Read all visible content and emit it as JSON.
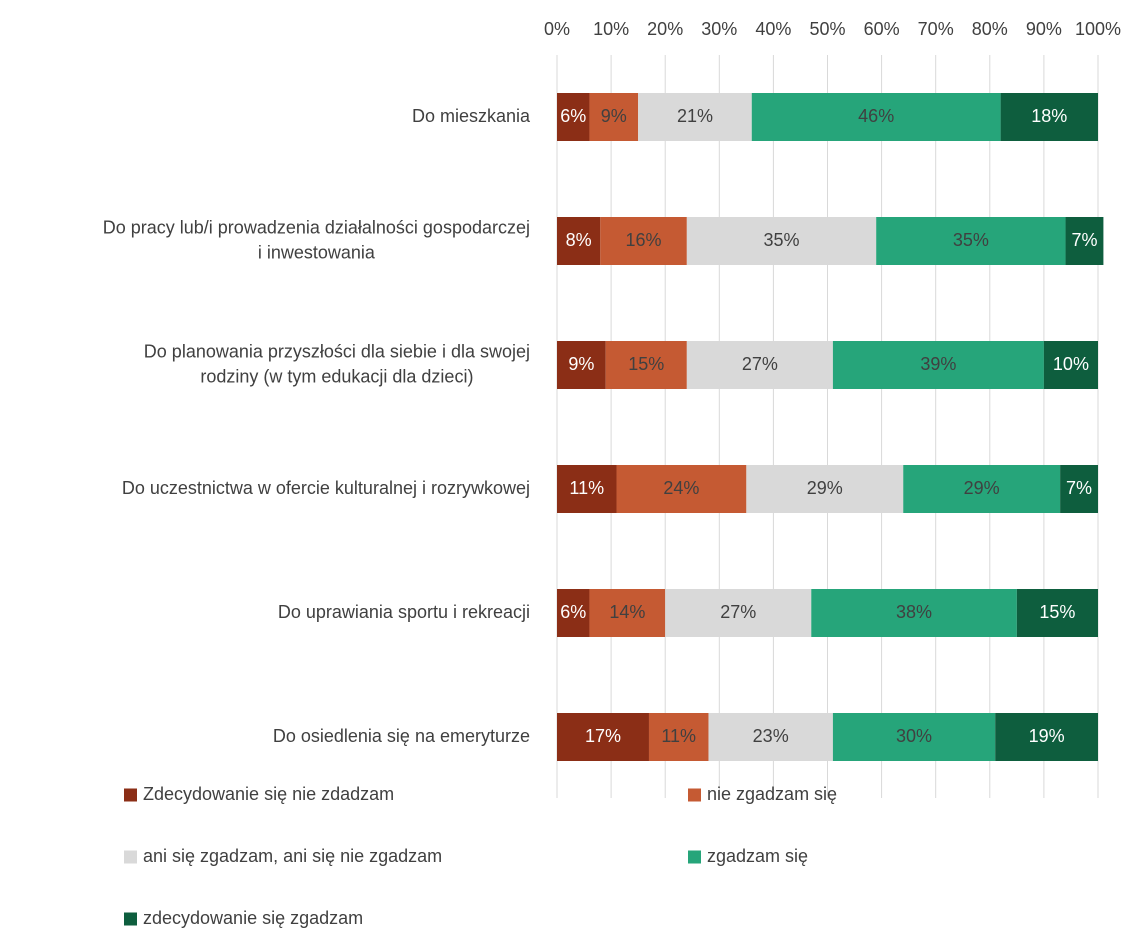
{
  "chart_data": {
    "type": "stacked-barh",
    "categories": [
      [
        "Do mieszkania"
      ],
      [
        "Do pracy lub/i prowadzenia działalności gospodarczej",
        "i inwestowania"
      ],
      [
        "Do planowania przyszłości dla siebie i dla swojej",
        "rodziny (w tym edukacji dla dzieci)"
      ],
      [
        "Do uczestnictwa w ofercie kulturalnej i rozrywkowej"
      ],
      [
        "Do uprawiania sportu i rekreacji"
      ],
      [
        "Do osiedlenia się na emeryturze"
      ]
    ],
    "series": [
      {
        "name": "Zdecydowanie się nie zdadzam",
        "color": "#8b2e16",
        "label_color": "#ffffff",
        "values": [
          6,
          8,
          9,
          11,
          6,
          17
        ],
        "value_labels": [
          "6%",
          "8%",
          "9%",
          "11%",
          "6%",
          "17%"
        ]
      },
      {
        "name": "nie zgadzam się",
        "color": "#c55a33",
        "label_color": "#404040",
        "values": [
          9,
          16,
          15,
          24,
          14,
          11
        ],
        "value_labels": [
          "9%",
          "16%",
          "15%",
          "24%",
          "14%",
          "11%"
        ]
      },
      {
        "name": "ani się zgadzam, ani się nie zgadzam",
        "color": "#d9d9d9",
        "label_color": "#404040",
        "values": [
          21,
          35,
          27,
          29,
          27,
          23
        ],
        "value_labels": [
          "21%",
          "35%",
          "27%",
          "29%",
          "27%",
          "23%"
        ]
      },
      {
        "name": "zgadzam się",
        "color": "#26a57a",
        "label_color": "#404040",
        "values": [
          46,
          35,
          39,
          29,
          38,
          30
        ],
        "value_labels": [
          "46%",
          "35%",
          "39%",
          "29%",
          "38%",
          "30%"
        ]
      },
      {
        "name": "zdecydowanie się zgadzam",
        "color": "#0e5e3e",
        "label_color": "#ffffff",
        "values": [
          18,
          7,
          10,
          7,
          15,
          19
        ],
        "value_labels": [
          "18%",
          "7%",
          "10%",
          "7%",
          "15%",
          "19%"
        ]
      }
    ],
    "xlim": [
      0,
      100
    ],
    "xticks": [
      {
        "value": 0,
        "label": "0%"
      },
      {
        "value": 10,
        "label": "10%"
      },
      {
        "value": 20,
        "label": "20%"
      },
      {
        "value": 30,
        "label": "30%"
      },
      {
        "value": 40,
        "label": "40%"
      },
      {
        "value": 50,
        "label": "50%"
      },
      {
        "value": 60,
        "label": "60%"
      },
      {
        "value": 70,
        "label": "70%"
      },
      {
        "value": 80,
        "label": "80%"
      },
      {
        "value": 90,
        "label": "90%"
      },
      {
        "value": 100,
        "label": "100%"
      }
    ],
    "grid": true
  }
}
